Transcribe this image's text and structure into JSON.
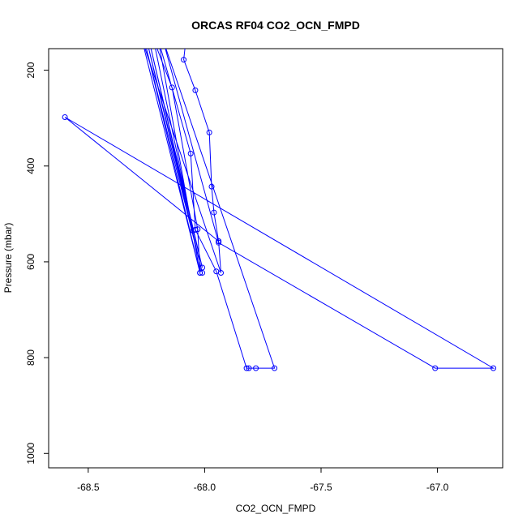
{
  "chart_data": {
    "type": "line",
    "title": "ORCAS RF04 CO2_OCN_FMPD",
    "xlabel": "CO2_OCN_FMPD",
    "ylabel": "Pressure (mbar)",
    "xlim": [
      -68.67,
      -66.72
    ],
    "ylim": [
      1030,
      155
    ],
    "y_reversed": true,
    "x_ticks": [
      -68.5,
      -68.0,
      -67.5,
      -67.0
    ],
    "x_tick_labels": [
      "-68.5",
      "-68.0",
      "-67.5",
      "-67.0"
    ],
    "y_ticks": [
      200,
      400,
      600,
      800,
      1000
    ],
    "y_tick_labels": [
      "200",
      "400",
      "600",
      "800",
      "1000"
    ],
    "grid": false,
    "legend": "none",
    "series": [
      {
        "line_color": "#0000ff",
        "marker": "open-circle",
        "points": [
          {
            "x": -68.08,
            "y": 135
          },
          {
            "x": -68.09,
            "y": 178
          },
          {
            "x": -68.04,
            "y": 242
          },
          {
            "x": -67.98,
            "y": 330
          },
          {
            "x": -67.97,
            "y": 443
          },
          {
            "x": -67.96,
            "y": 497
          },
          {
            "x": -67.94,
            "y": 557
          },
          {
            "x": -67.93,
            "y": 623
          },
          {
            "x": -68.27,
            "y": 135
          },
          {
            "x": -68.02,
            "y": 623
          },
          {
            "x": -68.26,
            "y": 135
          },
          {
            "x": -68.01,
            "y": 623
          },
          {
            "x": -68.25,
            "y": 135
          },
          {
            "x": -68.01,
            "y": 612
          },
          {
            "x": -68.24,
            "y": 135
          },
          {
            "x": -68.05,
            "y": 535
          },
          {
            "x": -68.22,
            "y": 135
          },
          {
            "x": -68.14,
            "y": 236
          },
          {
            "x": -68.03,
            "y": 532
          },
          {
            "x": -68.02,
            "y": 623
          },
          {
            "x": -68.2,
            "y": 135
          },
          {
            "x": -68.06,
            "y": 374
          },
          {
            "x": -68.04,
            "y": 533
          },
          {
            "x": -67.95,
            "y": 620
          },
          {
            "x": -67.82,
            "y": 822
          },
          {
            "x": -67.81,
            "y": 822
          },
          {
            "x": -67.78,
            "y": 822
          },
          {
            "x": -67.7,
            "y": 822
          },
          {
            "x": -68.18,
            "y": 135
          },
          {
            "x": -67.94,
            "y": 560
          },
          {
            "x": -67.01,
            "y": 822
          },
          {
            "x": -66.76,
            "y": 822
          },
          {
            "x": -68.6,
            "y": 298
          },
          {
            "x": -67.94,
            "y": 557
          }
        ]
      }
    ]
  }
}
